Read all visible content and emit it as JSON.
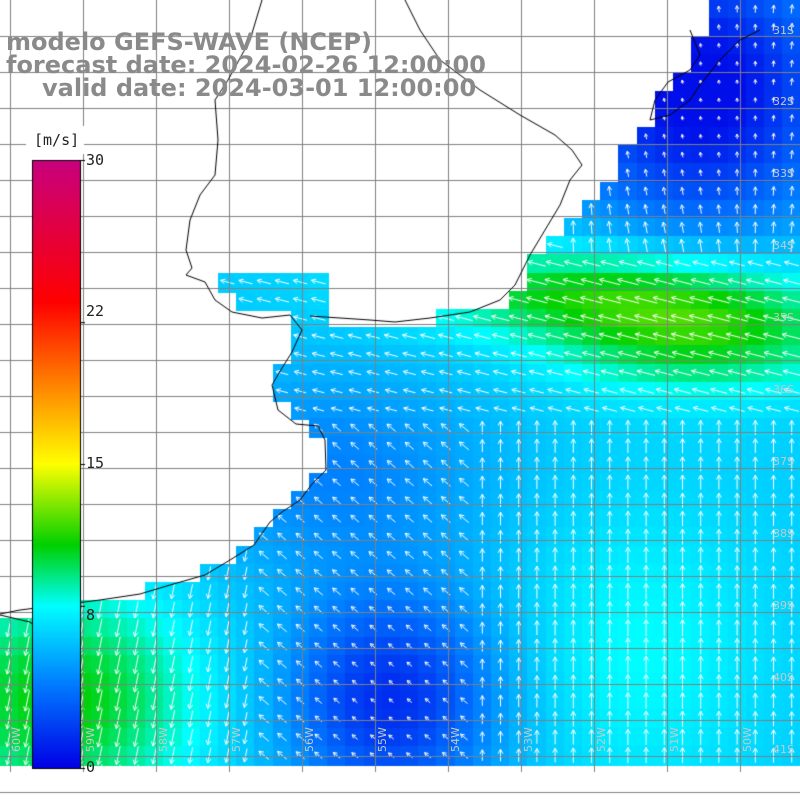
{
  "title": {
    "line1": "modelo GEFS-WAVE (NCEP)",
    "line2": "forecast date: 2024-02-26 12:00:00",
    "line3": "valid date: 2024-03-01 12:00:00"
  },
  "colorbar": {
    "unit": "[m/s]",
    "ticks": [
      {
        "label": "30",
        "value": 30
      },
      {
        "label": "22",
        "value": 22
      },
      {
        "label": "15",
        "value": 15
      },
      {
        "label": "8",
        "value": 8
      },
      {
        "label": "0",
        "value": 0
      }
    ],
    "stops": [
      {
        "value": 0,
        "color": "#0000e6"
      },
      {
        "value": 4,
        "color": "#0078ff"
      },
      {
        "value": 8,
        "color": "#00ffff"
      },
      {
        "value": 11,
        "color": "#00d000"
      },
      {
        "value": 15,
        "color": "#ffff00"
      },
      {
        "value": 19,
        "color": "#ff8000"
      },
      {
        "value": 23,
        "color": "#ff0000"
      },
      {
        "value": 30,
        "color": "#c8007f"
      }
    ]
  },
  "lat_labels": [
    "31S",
    "32S",
    "33S",
    "34S",
    "35S",
    "36S",
    "37S",
    "38S",
    "39S",
    "40S",
    "41S"
  ],
  "lon_labels": [
    "60W",
    "59W",
    "58W",
    "57W",
    "56W",
    "55W",
    "54W",
    "53W",
    "52W",
    "51W",
    "50W"
  ],
  "colors": {
    "land": "#ffffff",
    "coastline": "#000000",
    "grid": "#808080",
    "arrows": "#ffffff",
    "title": "#8a8a8a"
  }
}
